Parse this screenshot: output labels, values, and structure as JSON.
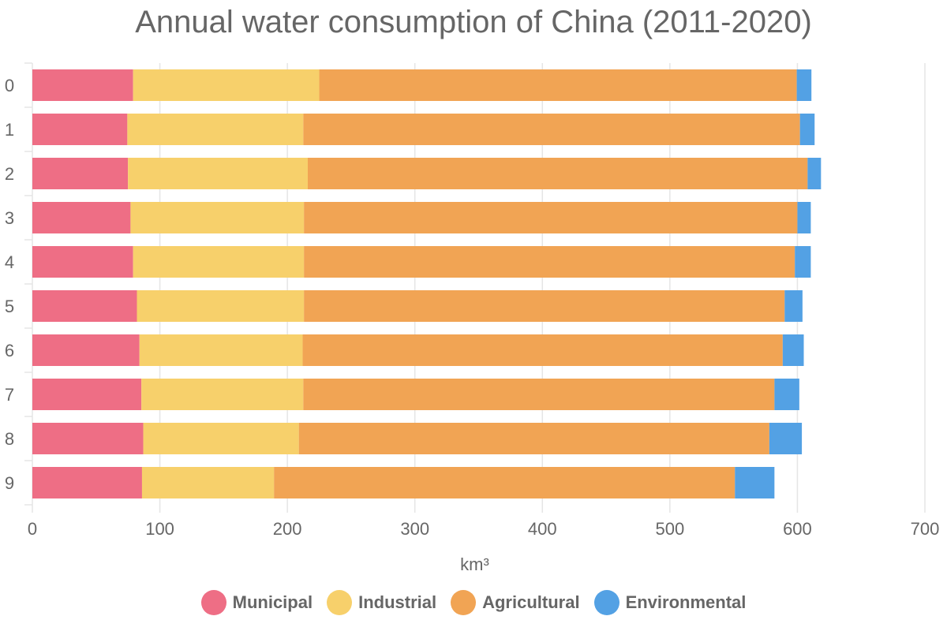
{
  "title": "Annual water consumption of China (2011-2020)",
  "colors": {
    "Municipal": "#ee6e85",
    "Industrial": "#f7d06b",
    "Agricultural": "#f1a454",
    "Environmental": "#53a1e4",
    "grid": "#e5e5e5",
    "text": "#666666"
  },
  "chart_data": {
    "type": "bar",
    "orientation": "horizontal",
    "stacked": true,
    "title": "Annual water consumption of China (2011-2020)",
    "xlabel": "km³",
    "ylabel": "",
    "categories": [
      "0",
      "1",
      "2",
      "3",
      "4",
      "5",
      "6",
      "7",
      "8",
      "9"
    ],
    "xlim": [
      0,
      700
    ],
    "xticks": [
      0,
      100,
      200,
      300,
      400,
      500,
      600,
      700
    ],
    "grid": true,
    "legend_position": "bottom",
    "series": [
      {
        "name": "Municipal",
        "values": [
          79,
          74.5,
          75,
          77,
          79,
          82,
          84,
          85.5,
          87,
          86
        ]
      },
      {
        "name": "Industrial",
        "values": [
          146,
          138,
          141,
          136,
          134,
          131,
          128,
          127,
          122,
          103.5
        ]
      },
      {
        "name": "Agricultural",
        "values": [
          374.5,
          389.5,
          392,
          387,
          385,
          377,
          376.5,
          369.5,
          369,
          361.5
        ]
      },
      {
        "name": "Environmental",
        "values": [
          11.5,
          11.5,
          10.5,
          10.5,
          12.5,
          14,
          16.5,
          19.5,
          25.5,
          31
        ]
      }
    ]
  }
}
